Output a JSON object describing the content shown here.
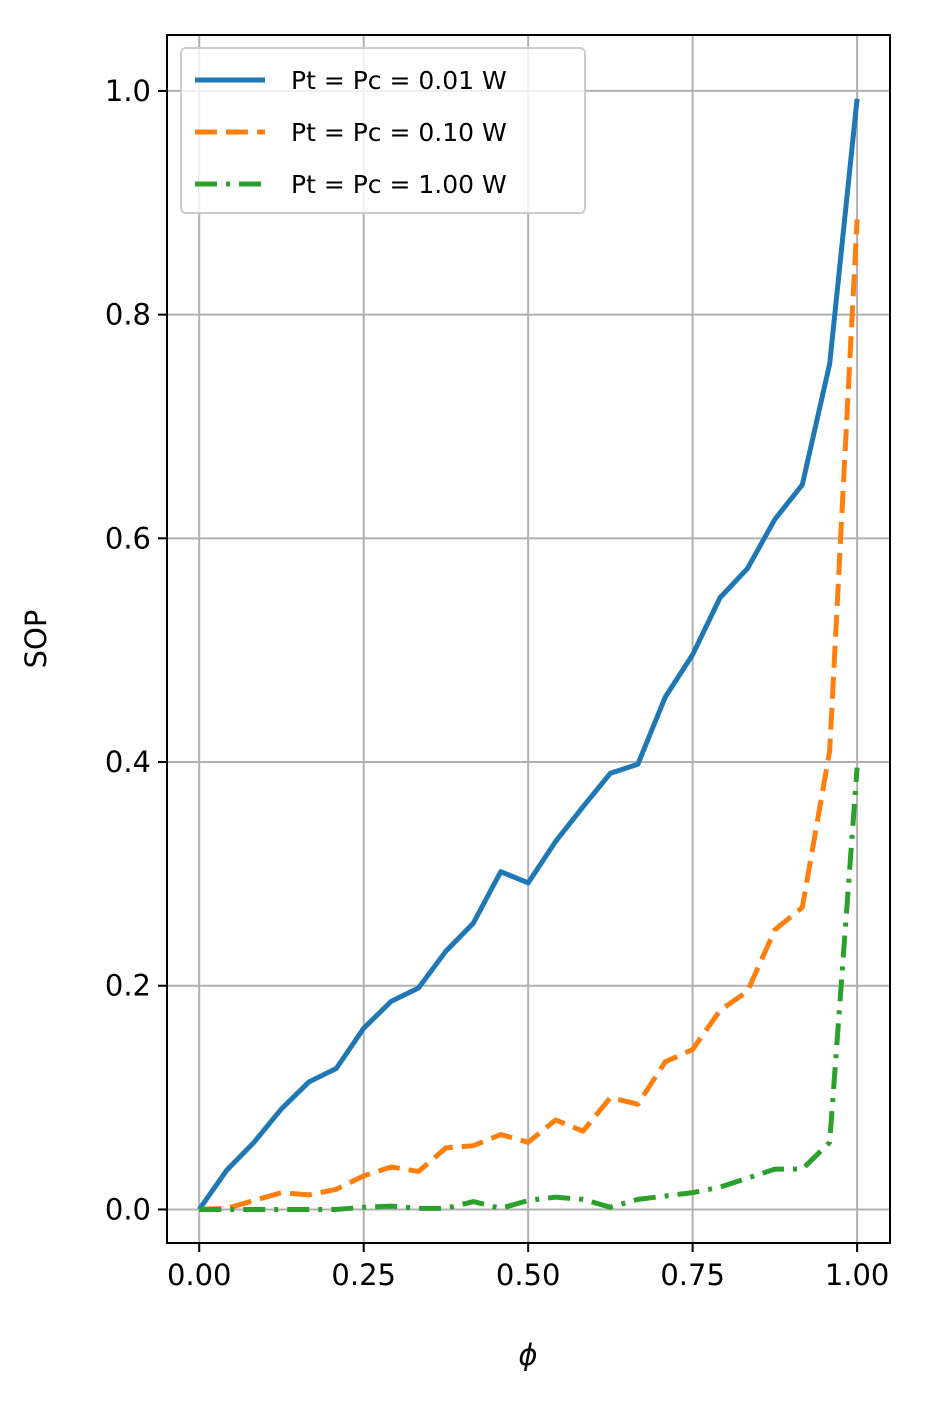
{
  "chart_data": {
    "type": "line",
    "xlabel": "ϕ",
    "ylabel": "SOP",
    "x": [
      0,
      0.0417,
      0.0833,
      0.125,
      0.1667,
      0.2083,
      0.25,
      0.2917,
      0.3333,
      0.375,
      0.4167,
      0.4583,
      0.5,
      0.5417,
      0.5833,
      0.625,
      0.6667,
      0.7083,
      0.75,
      0.7917,
      0.8333,
      0.875,
      0.9167,
      0.9583,
      1.0
    ],
    "series": [
      {
        "name": "Pt = Pc = 0.01 W",
        "color": "#1f77b4",
        "linestyle": "solid",
        "values": [
          0,
          0.035,
          0.06,
          0.09,
          0.114,
          0.126,
          0.162,
          0.186,
          0.198,
          0.231,
          0.256,
          0.302,
          0.292,
          0.329,
          0.36,
          0.39,
          0.398,
          0.458,
          0.496,
          0.547,
          0.573,
          0.617,
          0.648,
          0.756,
          0.993
        ]
      },
      {
        "name": "Pt = Pc = 0.10 W",
        "color": "#ff7f0e",
        "linestyle": "dashed",
        "values": [
          0,
          0.001,
          0.008,
          0.015,
          0.013,
          0.018,
          0.03,
          0.038,
          0.034,
          0.055,
          0.057,
          0.067,
          0.06,
          0.08,
          0.07,
          0.1,
          0.094,
          0.132,
          0.143,
          0.178,
          0.195,
          0.25,
          0.27,
          0.41,
          0.885
        ]
      },
      {
        "name": "Pt = Pc = 1.00 W",
        "color": "#2ca02c",
        "linestyle": "dashdot",
        "values": [
          0,
          0,
          0,
          0,
          0,
          0,
          0.002,
          0.003,
          0.001,
          0.001,
          0.007,
          0.001,
          0.008,
          0.011,
          0.009,
          0.002,
          0.009,
          0.012,
          0.015,
          0.02,
          0.028,
          0.036,
          0.036,
          0.06,
          0.395
        ]
      }
    ],
    "xlim": [
      -0.049,
      1.05
    ],
    "ylim": [
      -0.03,
      1.05
    ],
    "xticks": [
      {
        "value": 0,
        "label": "0.00"
      },
      {
        "value": 0.25,
        "label": "0.25"
      },
      {
        "value": 0.5,
        "label": "0.50"
      },
      {
        "value": 0.75,
        "label": "0.75"
      },
      {
        "value": 1,
        "label": "1.00"
      }
    ],
    "yticks": [
      {
        "value": 0,
        "label": "0.0"
      },
      0.2,
      0.4,
      0.6,
      0.8,
      {
        "value": 1,
        "label": "1.0"
      }
    ],
    "grid": true,
    "legend": "upper left"
  }
}
